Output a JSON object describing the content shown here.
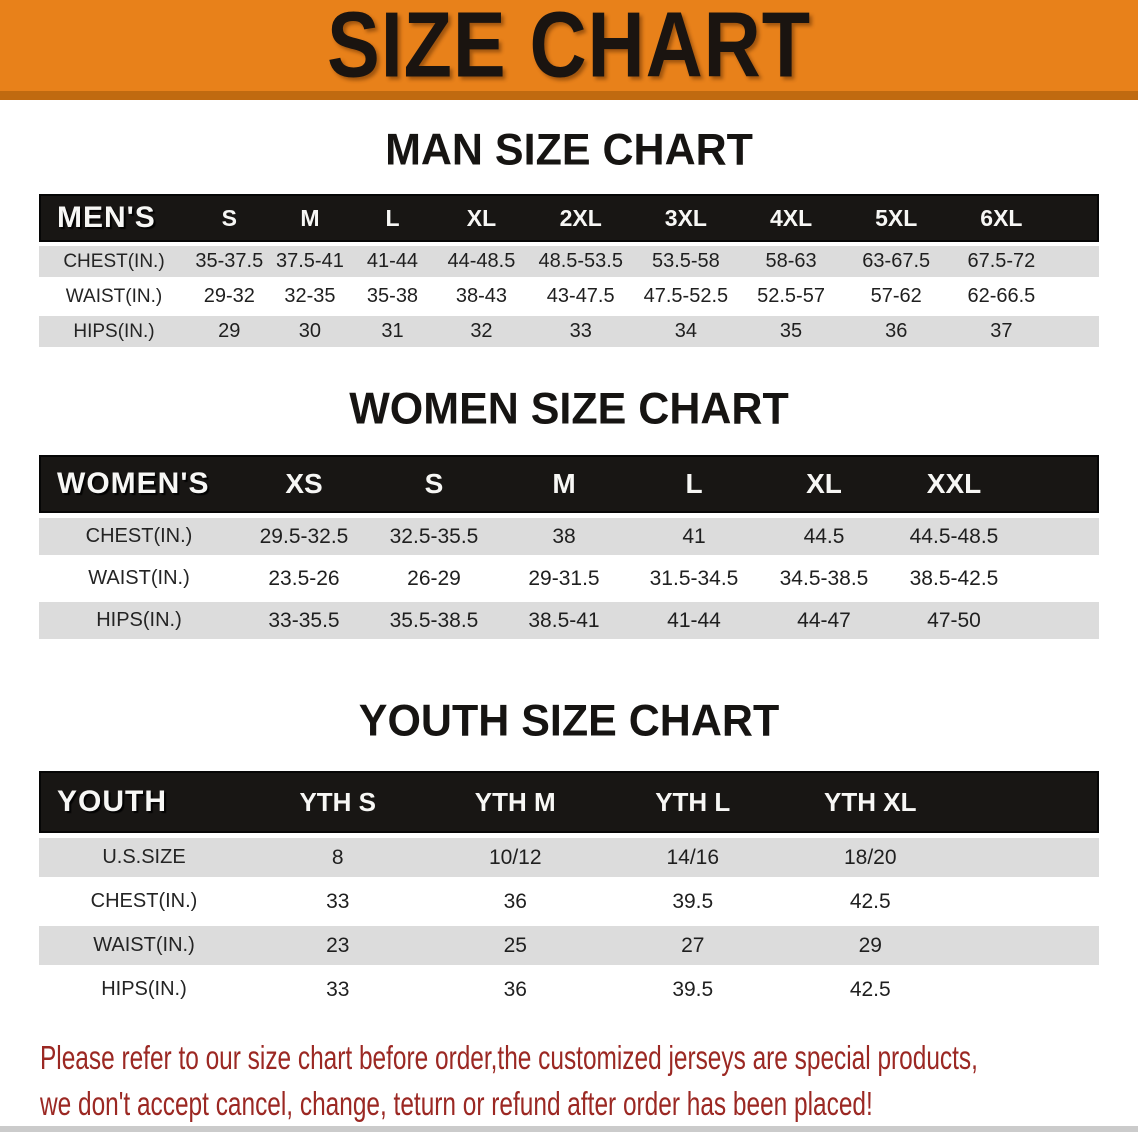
{
  "banner": {
    "title": "SIZE CHART",
    "bg_color": "#e8811a",
    "shadow_color": "#c06a10"
  },
  "sections": {
    "men": {
      "heading": "MAN SIZE CHART"
    },
    "women": {
      "heading": "WOMEN SIZE CHART"
    },
    "youth": {
      "heading": "YOUTH SIZE CHART"
    }
  },
  "tables": {
    "men": {
      "header_label": "MEN'S",
      "columns": [
        "S",
        "M",
        "L",
        "XL",
        "2XL",
        "3XL",
        "4XL",
        "5XL",
        "6XL"
      ],
      "rows": [
        {
          "label": "CHEST(IN.)",
          "values": [
            "35-37.5",
            "37.5-41",
            "41-44",
            "44-48.5",
            "48.5-53.5",
            "53.5-58",
            "58-63",
            "63-67.5",
            "67.5-72"
          ]
        },
        {
          "label": "WAIST(IN.)",
          "values": [
            "29-32",
            "32-35",
            "35-38",
            "38-43",
            "43-47.5",
            "47.5-52.5",
            "52.5-57",
            "57-62",
            "62-66.5"
          ]
        },
        {
          "label": "HIPS(IN.)",
          "values": [
            "29",
            "30",
            "31",
            "32",
            "33",
            "34",
            "35",
            "36",
            "37"
          ]
        }
      ]
    },
    "women": {
      "header_label": "WOMEN'S",
      "columns": [
        "XS",
        "S",
        "M",
        "L",
        "XL",
        "XXL"
      ],
      "rows": [
        {
          "label": "CHEST(IN.)",
          "values": [
            "29.5-32.5",
            "32.5-35.5",
            "38",
            "41",
            "44.5",
            "44.5-48.5"
          ]
        },
        {
          "label": "WAIST(IN.)",
          "values": [
            "23.5-26",
            "26-29",
            "29-31.5",
            "31.5-34.5",
            "34.5-38.5",
            "38.5-42.5"
          ]
        },
        {
          "label": "HIPS(IN.)",
          "values": [
            "33-35.5",
            "35.5-38.5",
            "38.5-41",
            "41-44",
            "44-47",
            "47-50"
          ]
        }
      ]
    },
    "youth": {
      "header_label": "YOUTH",
      "columns": [
        "YTH S",
        "YTH M",
        "YTH L",
        "YTH XL"
      ],
      "rows": [
        {
          "label": "U.S.SIZE",
          "values": [
            "8",
            "10/12",
            "14/16",
            "18/20"
          ]
        },
        {
          "label": "CHEST(IN.)",
          "values": [
            "33",
            "36",
            "39.5",
            "42.5"
          ]
        },
        {
          "label": "WAIST(IN.)",
          "values": [
            "23",
            "25",
            "27",
            "29"
          ]
        },
        {
          "label": "HIPS(IN.)",
          "values": [
            "33",
            "36",
            "39.5",
            "42.5"
          ]
        }
      ]
    }
  },
  "disclaimer": {
    "lines": [
      "Please refer to our size chart before order,the customized jerseys are special products,",
      "we don't accept cancel, change, teturn or refund after order has been placed!"
    ],
    "color": "#9b2823"
  },
  "colors": {
    "header_band": "#181614",
    "row_stripe": "#dcdcdc",
    "row_white": "#ffffff",
    "banner_orange": "#e8811a"
  }
}
